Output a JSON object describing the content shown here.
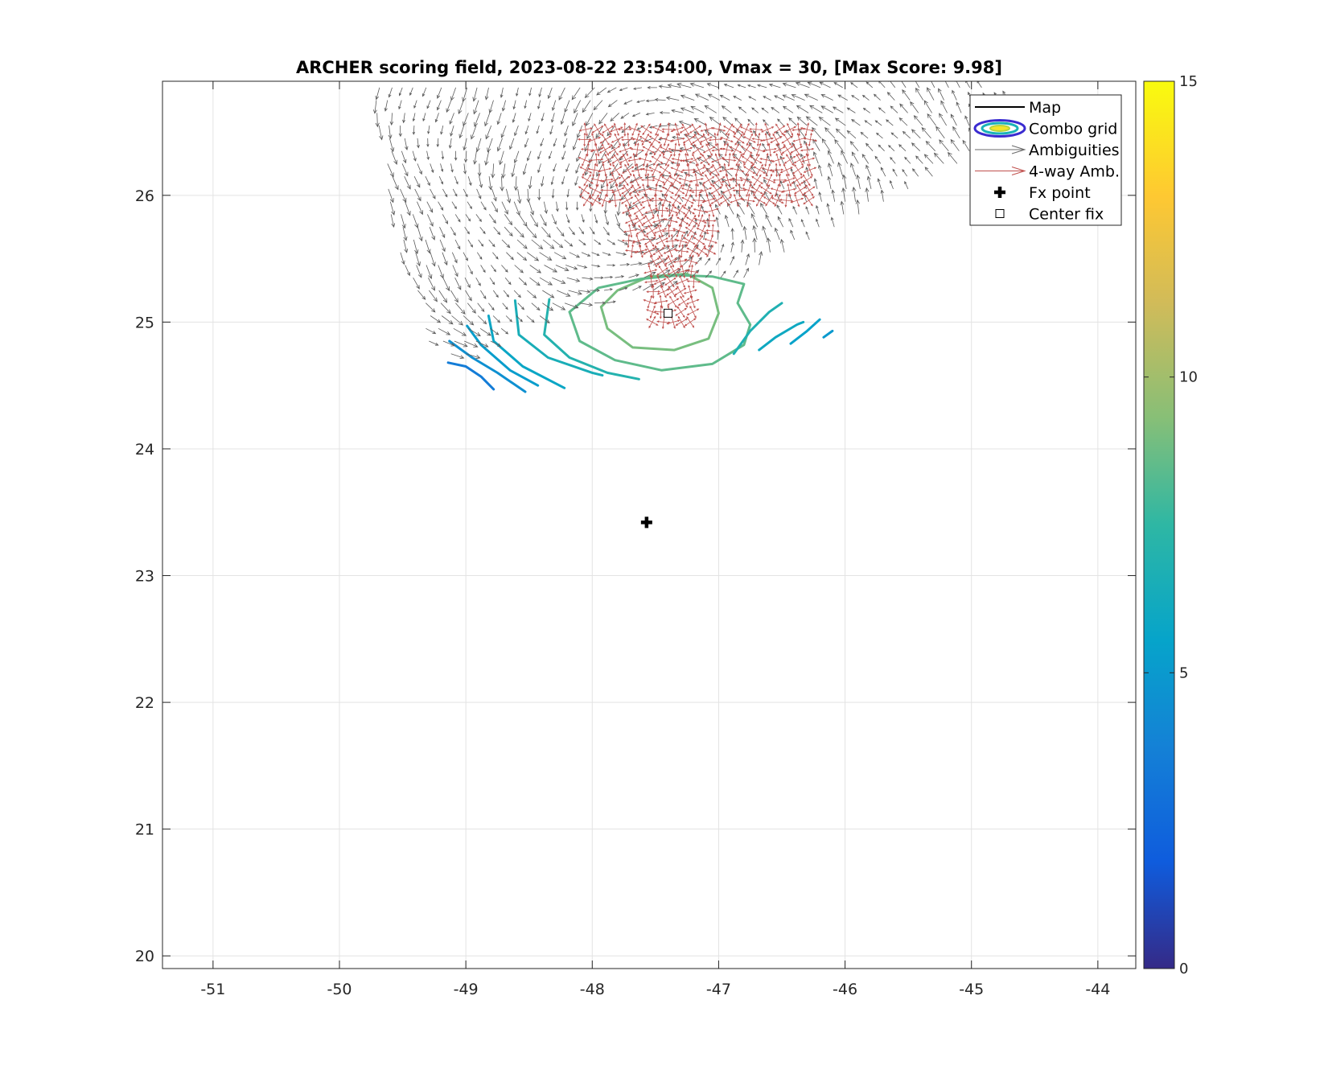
{
  "chart_data": {
    "type": "contour",
    "title": "ARCHER scoring field, 2023-08-22 23:54:00, Vmax = 30, [Max Score: 9.98]",
    "xlabel": "",
    "ylabel": "",
    "xlim": [
      -51.4,
      -43.7
    ],
    "ylim": [
      19.9,
      26.9
    ],
    "x_ticks": [
      -51,
      -50,
      -49,
      -48,
      -47,
      -46,
      -45,
      -44
    ],
    "y_ticks": [
      20,
      21,
      22,
      23,
      24,
      25,
      26
    ],
    "grid": true,
    "colorbar": {
      "min": 0,
      "max": 15,
      "ticks": [
        0,
        5,
        10,
        15
      ],
      "colormap": "parula"
    },
    "fx_point": {
      "lon": -47.57,
      "lat": 23.42
    },
    "center_fix": {
      "lon": -47.4,
      "lat": 25.07
    },
    "max_score": 9.98,
    "contour_lines": [
      {
        "level": 9.0,
        "points": [
          [
            -47.93,
            25.12
          ],
          [
            -47.88,
            24.95
          ],
          [
            -47.68,
            24.8
          ],
          [
            -47.35,
            24.78
          ],
          [
            -47.08,
            24.87
          ],
          [
            -47.0,
            25.07
          ],
          [
            -47.05,
            25.27
          ],
          [
            -47.25,
            25.38
          ],
          [
            -47.55,
            25.36
          ],
          [
            -47.8,
            25.25
          ],
          [
            -47.93,
            25.12
          ]
        ]
      },
      {
        "level": 8.5,
        "points": [
          [
            -48.18,
            25.08
          ],
          [
            -48.1,
            24.85
          ],
          [
            -47.82,
            24.7
          ],
          [
            -47.45,
            24.62
          ],
          [
            -47.05,
            24.67
          ],
          [
            -46.8,
            24.82
          ],
          [
            -46.75,
            24.98
          ],
          [
            -46.85,
            25.15
          ],
          [
            -46.8,
            25.3
          ],
          [
            -47.05,
            25.36
          ],
          [
            -47.32,
            25.37
          ],
          [
            -47.62,
            25.34
          ],
          [
            -47.95,
            25.27
          ],
          [
            -48.18,
            25.08
          ]
        ]
      },
      {
        "level": 7.0,
        "points": [
          [
            -48.34,
            25.18
          ],
          [
            -48.38,
            24.9
          ],
          [
            -48.18,
            24.72
          ],
          [
            -47.88,
            24.6
          ],
          [
            -47.63,
            24.55
          ]
        ]
      },
      {
        "level": 6.5,
        "points": [
          [
            -48.61,
            25.17
          ],
          [
            -48.58,
            24.9
          ],
          [
            -48.35,
            24.72
          ],
          [
            -48.0,
            24.6
          ],
          [
            -47.92,
            24.58
          ]
        ]
      },
      {
        "level": 5.8,
        "points": [
          [
            -48.82,
            25.05
          ],
          [
            -48.78,
            24.85
          ],
          [
            -48.55,
            24.65
          ],
          [
            -48.22,
            24.48
          ]
        ]
      },
      {
        "level": 5.2,
        "points": [
          [
            -48.99,
            24.97
          ],
          [
            -48.88,
            24.82
          ],
          [
            -48.65,
            24.62
          ],
          [
            -48.43,
            24.5
          ]
        ]
      },
      {
        "level": 4.5,
        "points": [
          [
            -49.13,
            24.85
          ],
          [
            -48.95,
            24.72
          ],
          [
            -48.75,
            24.6
          ],
          [
            -48.53,
            24.45
          ]
        ]
      },
      {
        "level": 3.5,
        "points": [
          [
            -49.14,
            24.68
          ],
          [
            -49.0,
            24.65
          ],
          [
            -48.88,
            24.57
          ],
          [
            -48.78,
            24.47
          ]
        ]
      },
      {
        "level": 6.8,
        "points": [
          [
            -46.88,
            24.75
          ],
          [
            -46.75,
            24.93
          ],
          [
            -46.6,
            25.08
          ],
          [
            -46.5,
            25.15
          ]
        ]
      },
      {
        "level": 6.0,
        "points": [
          [
            -46.68,
            24.78
          ],
          [
            -46.55,
            24.88
          ],
          [
            -46.38,
            24.98
          ],
          [
            -46.33,
            25.0
          ]
        ]
      },
      {
        "level": 5.5,
        "points": [
          [
            -46.43,
            24.83
          ],
          [
            -46.3,
            24.93
          ],
          [
            -46.2,
            25.02
          ]
        ]
      },
      {
        "level": 5.0,
        "points": [
          [
            -46.17,
            24.88
          ],
          [
            -46.1,
            24.93
          ]
        ]
      }
    ],
    "ambiguity_vector_region": {
      "polygon": [
        [
          -49.75,
          26.9
        ],
        [
          -45.0,
          26.9
        ],
        [
          -44.4,
          26.6
        ],
        [
          -46.8,
          25.35
        ],
        [
          -47.3,
          25.25
        ],
        [
          -48.6,
          25.0
        ],
        [
          -49.0,
          24.7
        ],
        [
          -49.3,
          24.8
        ],
        [
          -49.6,
          25.8
        ]
      ],
      "center": [
        -47.6,
        25.9
      ]
    },
    "four_way_vector_region": {
      "center": [
        -47.35,
        25.8
      ],
      "extent": "-47.8 to -46.5 lon, 25.0 to 26.6 lat"
    },
    "legend": {
      "position": "top-right",
      "entries": [
        {
          "label": "Map",
          "symbol": "line",
          "color": "#000000"
        },
        {
          "label": "Combo grid",
          "symbol": "contour-ellipse",
          "color": "#3a2bd0"
        },
        {
          "label": "Ambiguities",
          "symbol": "arrow",
          "color": "#6b6b6b"
        },
        {
          "label": "4-way Amb.",
          "symbol": "arrow",
          "color": "#c0504d"
        },
        {
          "label": "Fx point",
          "symbol": "bold-plus",
          "color": "#000000"
        },
        {
          "label": "Center fix",
          "symbol": "square",
          "color": "#000000"
        }
      ]
    }
  }
}
